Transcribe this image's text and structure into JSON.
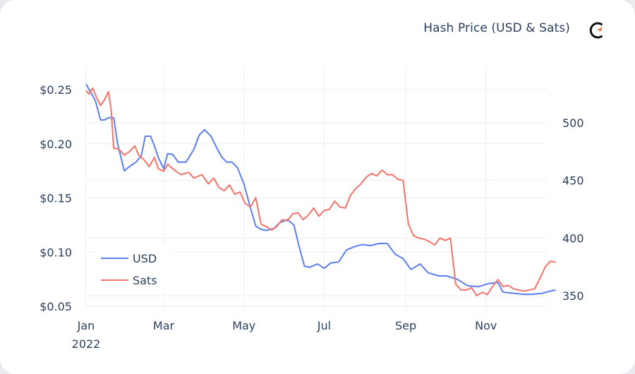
{
  "title": "Hash Price (USD & Sats)",
  "logo": {
    "icon": "clock-logo-icon",
    "accent": "#f26b3a",
    "ring": "#111111"
  },
  "colors": {
    "usd": "#5b7ff0",
    "sats": "#f4736b",
    "grid": "#eeeeee",
    "text": "#2a3f5f"
  },
  "chart_data": {
    "type": "line",
    "title": "Hash Price (USD & Sats)",
    "xlabel": "",
    "x_ticks": [
      "Jan\n2022",
      "Mar",
      "May",
      "Jul",
      "Sep",
      "Nov"
    ],
    "y_left": {
      "label": "USD",
      "ticks": [
        "$0.25",
        "$0.20",
        "$0.15",
        "$0.10",
        "$0.05"
      ],
      "range": [
        0.05,
        0.26
      ]
    },
    "y_right": {
      "label": "Sats",
      "ticks": [
        "500",
        "450",
        "400",
        "350"
      ],
      "range": [
        345,
        535
      ]
    },
    "legend": {
      "position": "inside-bottom-left",
      "entries": [
        "USD",
        "Sats"
      ]
    },
    "grid": true,
    "series": [
      {
        "name": "USD",
        "axis": "left",
        "color": "#5b7ff0",
        "x": [
          "2022-01-01",
          "2022-01-08",
          "2022-01-12",
          "2022-01-15",
          "2022-01-18",
          "2022-01-22",
          "2022-01-25",
          "2022-01-30",
          "2022-02-04",
          "2022-02-08",
          "2022-02-12",
          "2022-02-15",
          "2022-02-19",
          "2022-02-22",
          "2022-02-25",
          "2022-03-01",
          "2022-03-04",
          "2022-03-08",
          "2022-03-12",
          "2022-03-18",
          "2022-03-24",
          "2022-03-28",
          "2022-04-01",
          "2022-04-06",
          "2022-04-10",
          "2022-04-14",
          "2022-04-18",
          "2022-04-22",
          "2022-04-26",
          "2022-05-01",
          "2022-05-05",
          "2022-05-10",
          "2022-05-14",
          "2022-05-18",
          "2022-05-24",
          "2022-05-28",
          "2022-06-03",
          "2022-06-08",
          "2022-06-12",
          "2022-06-16",
          "2022-06-20",
          "2022-06-26",
          "2022-07-01",
          "2022-07-06",
          "2022-07-12",
          "2022-07-18",
          "2022-07-24",
          "2022-07-30",
          "2022-08-05",
          "2022-08-12",
          "2022-08-18",
          "2022-08-24",
          "2022-08-30",
          "2022-09-05",
          "2022-09-12",
          "2022-09-18",
          "2022-09-26",
          "2022-10-02",
          "2022-10-10",
          "2022-10-18",
          "2022-10-26",
          "2022-11-03",
          "2022-11-10",
          "2022-11-14",
          "2022-11-22",
          "2022-11-30",
          "2022-12-06",
          "2022-12-14",
          "2022-12-20",
          "2022-12-24"
        ],
        "values": [
          0.255,
          0.24,
          0.222,
          0.222,
          0.224,
          0.224,
          0.2,
          0.175,
          0.18,
          0.183,
          0.189,
          0.207,
          0.207,
          0.198,
          0.187,
          0.177,
          0.191,
          0.19,
          0.183,
          0.183,
          0.195,
          0.208,
          0.213,
          0.207,
          0.197,
          0.188,
          0.183,
          0.183,
          0.178,
          0.163,
          0.145,
          0.124,
          0.121,
          0.12,
          0.122,
          0.127,
          0.13,
          0.125,
          0.105,
          0.087,
          0.086,
          0.089,
          0.085,
          0.09,
          0.091,
          0.102,
          0.105,
          0.107,
          0.106,
          0.108,
          0.108,
          0.098,
          0.094,
          0.084,
          0.089,
          0.081,
          0.078,
          0.078,
          0.075,
          0.069,
          0.068,
          0.071,
          0.072,
          0.063,
          0.062,
          0.061,
          0.061,
          0.062,
          0.064,
          0.065
        ]
      },
      {
        "name": "Sats",
        "axis": "right",
        "color": "#f4736b",
        "x": [
          "2022-01-01",
          "2022-01-03",
          "2022-01-06",
          "2022-01-09",
          "2022-01-12",
          "2022-01-15",
          "2022-01-18",
          "2022-01-20",
          "2022-01-22",
          "2022-01-26",
          "2022-01-30",
          "2022-02-03",
          "2022-02-07",
          "2022-02-10",
          "2022-02-14",
          "2022-02-18",
          "2022-02-22",
          "2022-02-25",
          "2022-03-01",
          "2022-03-04",
          "2022-03-08",
          "2022-03-14",
          "2022-03-20",
          "2022-03-24",
          "2022-03-30",
          "2022-04-04",
          "2022-04-08",
          "2022-04-12",
          "2022-04-16",
          "2022-04-20",
          "2022-04-24",
          "2022-04-28",
          "2022-05-02",
          "2022-05-06",
          "2022-05-10",
          "2022-05-14",
          "2022-05-18",
          "2022-05-22",
          "2022-05-26",
          "2022-05-30",
          "2022-06-03",
          "2022-06-07",
          "2022-06-11",
          "2022-06-15",
          "2022-06-19",
          "2022-06-23",
          "2022-06-27",
          "2022-07-01",
          "2022-07-05",
          "2022-07-09",
          "2022-07-13",
          "2022-07-17",
          "2022-07-21",
          "2022-07-25",
          "2022-07-29",
          "2022-08-02",
          "2022-08-06",
          "2022-08-10",
          "2022-08-14",
          "2022-08-18",
          "2022-08-22",
          "2022-08-26",
          "2022-08-30",
          "2022-09-03",
          "2022-09-07",
          "2022-09-11",
          "2022-09-15",
          "2022-09-19",
          "2022-09-23",
          "2022-09-27",
          "2022-10-01",
          "2022-10-05",
          "2022-10-09",
          "2022-10-13",
          "2022-10-17",
          "2022-10-21",
          "2022-10-25",
          "2022-10-29",
          "2022-11-02",
          "2022-11-06",
          "2022-11-10",
          "2022-11-14",
          "2022-11-18",
          "2022-11-22",
          "2022-11-26",
          "2022-11-30",
          "2022-12-04",
          "2022-12-08",
          "2022-12-12",
          "2022-12-16",
          "2022-12-20",
          "2022-12-24"
        ],
        "values": [
          528,
          525,
          530,
          522,
          515,
          520,
          527,
          512,
          478,
          477,
          472,
          475,
          480,
          472,
          468,
          462,
          470,
          460,
          458,
          464,
          460,
          455,
          457,
          452,
          455,
          447,
          452,
          444,
          441,
          446,
          438,
          440,
          430,
          427,
          435,
          412,
          410,
          407,
          410,
          416,
          415,
          421,
          422,
          416,
          420,
          426,
          419,
          424,
          425,
          432,
          427,
          426,
          437,
          443,
          447,
          453,
          456,
          454,
          459,
          455,
          455,
          451,
          450,
          412,
          402,
          400,
          399,
          397,
          394,
          400,
          398,
          400,
          360,
          355,
          355,
          357,
          350,
          353,
          351,
          358,
          364,
          358,
          359,
          356,
          355,
          354,
          355,
          356,
          365,
          375,
          380,
          379
        ]
      }
    ]
  }
}
